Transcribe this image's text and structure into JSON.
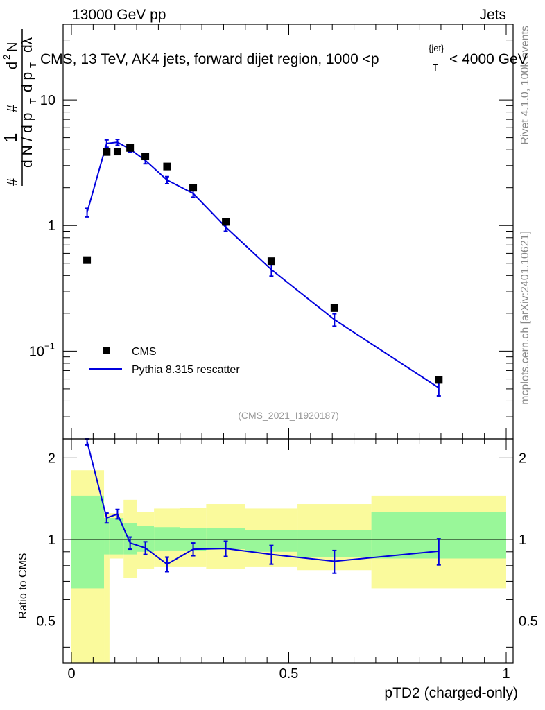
{
  "header": {
    "left": "13000 GeV pp",
    "right": "Jets"
  },
  "side": {
    "rivet": "Rivet 4.1.0,  100k events",
    "mcplots": "mcplots.cern.ch [arXiv:2401.10621]"
  },
  "chart_data": {
    "type": "line",
    "title": "CMS, 13 TeV, AK4 jets, forward dijet region, 1000 <p",
    "title_sup": "{jet}",
    "title_sub": "T",
    "title_end": "< 4000 GeV",
    "watermark": "(CMS_2021_I1920187)",
    "xlabel": "pTD2 (charged-only)",
    "ylabel_parts": [
      "#",
      "1",
      "d N / d p",
      "T",
      "#",
      "d p",
      "T",
      "d",
      "2",
      "N",
      "dλ"
    ],
    "ratio_ylabel": "Ratio to CMS",
    "xlim": [
      0,
      1
    ],
    "main_ylim": [
      0.02,
      40
    ],
    "ratio_ylim": [
      0.35,
      2.35
    ],
    "x_ticks": [
      0,
      0.5,
      1
    ],
    "x_tick_labels": [
      "0",
      "0.5",
      "1"
    ],
    "main_y_ticks": [
      {
        "value": 0.1,
        "base": "10",
        "exp": "−1"
      },
      {
        "value": 1,
        "base": "1",
        "exp": ""
      },
      {
        "value": 10,
        "base": "10",
        "exp": ""
      }
    ],
    "ratio_y_ticks": [
      {
        "value": 0.5,
        "label": "0.5"
      },
      {
        "value": 1,
        "label": "1"
      },
      {
        "value": 2,
        "label": "2"
      }
    ],
    "legend": {
      "position": "bottom-left",
      "entries": [
        "CMS",
        "Pythia 8.315 rescatter"
      ]
    },
    "colors": {
      "mc": "#0000dd",
      "data": "#000000",
      "band_inner": "#99f799",
      "band_outer": "#fafa9c"
    },
    "bins": [
      0,
      0.075,
      0.0875,
      0.12,
      0.15,
      0.19,
      0.25,
      0.31,
      0.4,
      0.52,
      0.69,
      1.0
    ],
    "ratio_band_inner": [
      [
        0.66,
        1.45
      ],
      [
        0.88,
        1.2
      ],
      [
        0.88,
        1.2
      ],
      [
        0.88,
        1.15
      ],
      [
        0.9,
        1.12
      ],
      [
        0.91,
        1.11
      ],
      [
        0.91,
        1.1
      ],
      [
        0.92,
        1.1
      ],
      [
        0.9,
        1.08
      ],
      [
        0.86,
        1.08
      ],
      [
        0.85,
        1.26
      ]
    ],
    "ratio_band_outer": [
      [
        0.35,
        1.8
      ],
      [
        0.35,
        1.25
      ],
      [
        0.85,
        1.25
      ],
      [
        0.72,
        1.4
      ],
      [
        0.78,
        1.26
      ],
      [
        0.79,
        1.3
      ],
      [
        0.79,
        1.31
      ],
      [
        0.78,
        1.35
      ],
      [
        0.79,
        1.3
      ],
      [
        0.77,
        1.35
      ],
      [
        0.66,
        1.45
      ]
    ],
    "series": [
      {
        "name": "CMS",
        "x": [
          0.036,
          0.081,
          0.106,
          0.135,
          0.17,
          0.22,
          0.28,
          0.355,
          0.46,
          0.605,
          0.845
        ],
        "values": [
          0.53,
          3.85,
          3.88,
          4.15,
          3.55,
          2.95,
          2.0,
          1.07,
          0.52,
          0.22,
          0.059
        ]
      },
      {
        "name": "Pythia 8.315 rescatter",
        "x": [
          0.036,
          0.081,
          0.106,
          0.135,
          0.17,
          0.22,
          0.28,
          0.355,
          0.46,
          0.605,
          0.845
        ],
        "values": [
          1.27,
          4.5,
          4.6,
          4.05,
          3.3,
          2.3,
          1.8,
          0.97,
          0.445,
          0.178,
          0.051
        ],
        "err_low": [
          0.1,
          0.3,
          0.25,
          0.2,
          0.2,
          0.15,
          0.12,
          0.07,
          0.05,
          0.02,
          0.007
        ],
        "err_high": [
          0.1,
          0.3,
          0.25,
          0.2,
          0.2,
          0.15,
          0.12,
          0.07,
          0.05,
          0.02,
          0.007
        ]
      }
    ],
    "ratio": {
      "x": [
        0.036,
        0.081,
        0.106,
        0.135,
        0.17,
        0.22,
        0.28,
        0.355,
        0.46,
        0.605,
        0.845
      ],
      "values": [
        2.3,
        1.2,
        1.24,
        0.97,
        0.93,
        0.81,
        0.92,
        0.925,
        0.88,
        0.83,
        0.905
      ],
      "err": [
        0.07,
        0.05,
        0.05,
        0.05,
        0.05,
        0.05,
        0.05,
        0.06,
        0.07,
        0.08,
        0.1
      ]
    }
  }
}
